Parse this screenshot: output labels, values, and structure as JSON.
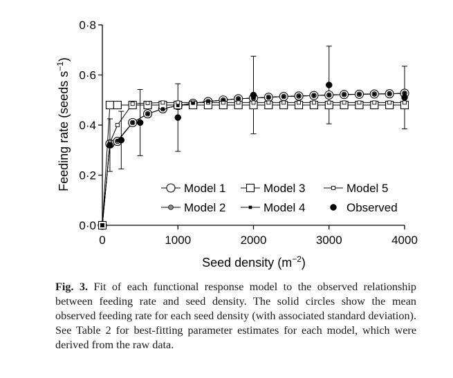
{
  "chart_data": {
    "type": "line",
    "xlabel": "Seed density (m",
    "xlabel_sup": "−2",
    "xlabel_end": ")",
    "ylabel": "Feeding rate (seeds s",
    "ylabel_sup": "−1",
    "ylabel_end": ")",
    "xlim": [
      0,
      4000
    ],
    "ylim": [
      0,
      0.8
    ],
    "x_ticks": [
      0,
      1000,
      2000,
      3000,
      4000
    ],
    "x_tick_labels": [
      "0",
      "1000",
      "2000",
      "3000",
      "4000"
    ],
    "y_ticks": [
      0,
      0.2,
      0.4,
      0.6,
      0.8
    ],
    "y_tick_labels": [
      "0·0",
      "0·2",
      "0·4",
      "0·6",
      "0·8"
    ],
    "grid": false,
    "legend_position": "inside-bottom-right",
    "series": [
      {
        "name": "Model 1",
        "marker": "open-circle",
        "x": [
          0,
          100,
          200,
          400,
          600,
          800,
          1000,
          1200,
          1400,
          1600,
          1800,
          2000,
          2200,
          2400,
          2600,
          2800,
          3000,
          3200,
          3400,
          3600,
          3800,
          4000
        ],
        "y": [
          0,
          0.325,
          0.335,
          0.41,
          0.445,
          0.465,
          0.478,
          0.487,
          0.494,
          0.5,
          0.505,
          0.508,
          0.511,
          0.514,
          0.516,
          0.518,
          0.52,
          0.522,
          0.523,
          0.524,
          0.525,
          0.527
        ]
      },
      {
        "name": "Model 2",
        "marker": "grey-circle",
        "x": [
          0,
          100,
          200,
          400,
          600,
          800,
          1000,
          1200,
          1400,
          1600,
          1800,
          2000,
          2200,
          2400,
          2600,
          2800,
          3000,
          3200,
          3400,
          3600,
          3800,
          4000
        ],
        "y": [
          0,
          0.325,
          0.335,
          0.41,
          0.445,
          0.465,
          0.478,
          0.487,
          0.494,
          0.5,
          0.505,
          0.508,
          0.511,
          0.514,
          0.516,
          0.518,
          0.52,
          0.522,
          0.523,
          0.524,
          0.525,
          0.527
        ]
      },
      {
        "name": "Model 3",
        "marker": "open-square-large",
        "x": [
          0,
          100,
          200,
          400,
          600,
          800,
          1000,
          1200,
          1400,
          1600,
          1800,
          2000,
          2200,
          2400,
          2600,
          2800,
          3000,
          3200,
          3400,
          3600,
          3800,
          4000
        ],
        "y": [
          0,
          0.48,
          0.48,
          0.48,
          0.48,
          0.48,
          0.48,
          0.48,
          0.48,
          0.48,
          0.48,
          0.48,
          0.48,
          0.48,
          0.48,
          0.48,
          0.48,
          0.48,
          0.48,
          0.48,
          0.48,
          0.48
        ]
      },
      {
        "name": "Model 4",
        "marker": "small-filled-square",
        "x": [
          0,
          100,
          200,
          400,
          600,
          800,
          1000,
          1200,
          1400,
          1600,
          1800,
          2000,
          2200,
          2400,
          2600,
          2800,
          3000,
          3200,
          3400,
          3600,
          3800,
          4000
        ],
        "y": [
          0,
          0.325,
          0.338,
          0.41,
          0.445,
          0.465,
          0.478,
          0.487,
          0.494,
          0.5,
          0.505,
          0.508,
          0.511,
          0.514,
          0.516,
          0.518,
          0.52,
          0.522,
          0.523,
          0.524,
          0.525,
          0.527
        ]
      },
      {
        "name": "Model 5",
        "marker": "small-open-square",
        "x": [
          0,
          100,
          200,
          400,
          600,
          800,
          1000,
          1200,
          1400,
          1600,
          1800,
          2000,
          2200,
          2400,
          2600,
          2800,
          3000,
          3200,
          3400,
          3600,
          3800,
          4000
        ],
        "y": [
          0,
          0.33,
          0.4,
          0.485,
          0.488,
          0.49,
          0.49,
          0.49,
          0.49,
          0.49,
          0.49,
          0.49,
          0.49,
          0.49,
          0.49,
          0.49,
          0.49,
          0.49,
          0.49,
          0.49,
          0.49,
          0.49
        ]
      }
    ],
    "observed": {
      "name": "Observed",
      "marker": "filled-circle",
      "points": [
        {
          "x": 0,
          "y": 0.0,
          "sd": 0
        },
        {
          "x": 100,
          "y": 0.32,
          "sd": 0.105
        },
        {
          "x": 250,
          "y": 0.34,
          "sd": 0.115
        },
        {
          "x": 500,
          "y": 0.41,
          "sd": 0.132
        },
        {
          "x": 1000,
          "y": 0.43,
          "sd": 0.135
        },
        {
          "x": 2000,
          "y": 0.52,
          "sd": 0.155
        },
        {
          "x": 3000,
          "y": 0.56,
          "sd": 0.155
        },
        {
          "x": 4000,
          "y": 0.51,
          "sd": 0.125
        }
      ]
    },
    "legend": [
      {
        "name": "Model 1",
        "marker": "open-circle"
      },
      {
        "name": "Model 3",
        "marker": "open-square-large"
      },
      {
        "name": "Model 5",
        "marker": "small-open-square"
      },
      {
        "name": "Model 2",
        "marker": "grey-circle"
      },
      {
        "name": "Model 4",
        "marker": "small-filled-square"
      },
      {
        "name": "Observed",
        "marker": "filled-circle"
      }
    ]
  },
  "caption": {
    "label": "Fig. 3.",
    "text": " Fit of each functional response model to the observed relationship between feeding rate and seed density. The solid circles show the mean observed feeding rate for each seed density (with associated standard deviation). See Table 2 for best-fitting parameter estimates for each model, which were derived from the raw data."
  }
}
